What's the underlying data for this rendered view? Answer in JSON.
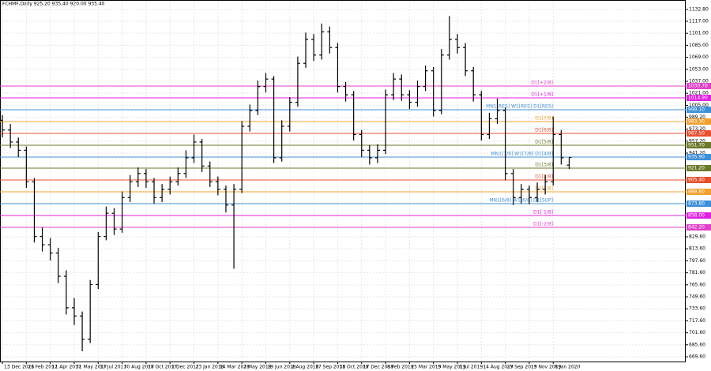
{
  "chart_data": {
    "type": "ohlc",
    "title": "FCHMF,Daily  925.20 935.40 920.00 935.40",
    "color": "#000000",
    "grid": true,
    "x": [
      0,
      1,
      2,
      3,
      4,
      5,
      6,
      7,
      8,
      9,
      10,
      11,
      12,
      13,
      14,
      15,
      16,
      17,
      18,
      19,
      20,
      21,
      22,
      23,
      24,
      25,
      26,
      27,
      28,
      29,
      30,
      31,
      32,
      33,
      34,
      35,
      36,
      37,
      38,
      39,
      40,
      41,
      42,
      43,
      44,
      45,
      46,
      47,
      48,
      49,
      50,
      51,
      52,
      53,
      54,
      55,
      56,
      57,
      58,
      59,
      60,
      61,
      62,
      63,
      64,
      65,
      66,
      67,
      68,
      69,
      70,
      71
    ],
    "open": [
      985,
      972,
      956,
      945,
      903,
      830,
      819,
      808,
      777,
      735,
      724,
      693,
      766,
      830,
      861,
      840,
      882,
      903,
      914,
      903,
      882,
      893,
      903,
      914,
      935,
      956,
      924,
      903,
      893,
      872,
      893,
      977,
      998,
      1030,
      1040,
      935,
      977,
      1009,
      1061,
      1093,
      1072,
      1103,
      1082,
      1030,
      1019,
      966,
      945,
      935,
      945,
      1019,
      1040,
      1019,
      1009,
      1030,
      1051,
      998,
      1072,
      1093,
      1082,
      1051,
      1019,
      966,
      987,
      998,
      914,
      882,
      893,
      882,
      893,
      903,
      966,
      925.2
    ],
    "high": [
      992,
      980,
      962,
      950,
      908,
      842,
      828,
      815,
      785,
      748,
      730,
      772,
      836,
      870,
      868,
      890,
      912,
      922,
      920,
      908,
      900,
      910,
      922,
      945,
      966,
      960,
      930,
      910,
      898,
      900,
      984,
      1006,
      1038,
      1048,
      1044,
      985,
      1016,
      1070,
      1102,
      1100,
      1114,
      1110,
      1088,
      1036,
      1024,
      972,
      952,
      953,
      1026,
      1048,
      1046,
      1025,
      1038,
      1058,
      1056,
      1080,
      1124,
      1100,
      1088,
      1056,
      1024,
      995,
      1014,
      1002,
      920,
      900,
      898,
      902,
      912,
      990,
      972,
      935.4
    ],
    "low": [
      962,
      948,
      936,
      895,
      822,
      810,
      798,
      768,
      726,
      712,
      677,
      688,
      760,
      825,
      832,
      835,
      876,
      896,
      895,
      874,
      876,
      886,
      898,
      908,
      928,
      916,
      896,
      885,
      862,
      787,
      888,
      970,
      992,
      1022,
      928,
      930,
      970,
      1003,
      1055,
      1064,
      1066,
      1074,
      1022,
      1010,
      958,
      936,
      926,
      928,
      940,
      1012,
      1011,
      1000,
      1003,
      1024,
      990,
      993,
      1066,
      1074,
      1044,
      1010,
      958,
      960,
      980,
      905,
      872,
      874,
      873,
      876,
      886,
      898,
      926,
      920
    ],
    "close": [
      972,
      956,
      945,
      903,
      830,
      819,
      808,
      777,
      735,
      724,
      693,
      766,
      830,
      861,
      840,
      882,
      903,
      914,
      903,
      882,
      893,
      903,
      914,
      935,
      956,
      924,
      903,
      893,
      872,
      893,
      977,
      998,
      1030,
      1040,
      935,
      977,
      1009,
      1061,
      1093,
      1072,
      1103,
      1082,
      1030,
      1019,
      966,
      945,
      935,
      945,
      1019,
      1040,
      1019,
      1009,
      1030,
      1051,
      998,
      1072,
      1093,
      1082,
      1051,
      1019,
      966,
      987,
      998,
      914,
      882,
      893,
      882,
      893,
      903,
      966,
      935,
      935.4
    ],
    "xlim": [
      -0.3,
      85.6
    ],
    "ylim": [
      663.3,
      1145.4
    ],
    "xticks": [
      {
        "value": 0,
        "label": "13 Dec 2016"
      },
      {
        "value": 3,
        "label": "21 Feb 2017"
      },
      {
        "value": 6,
        "label": "11 Apr 2017"
      },
      {
        "value": 9,
        "label": "31 May 2017"
      },
      {
        "value": 12,
        "label": "17 Jul 2017"
      },
      {
        "value": 15,
        "label": "30 Aug 2017"
      },
      {
        "value": 18,
        "label": "18 Oct 2017"
      },
      {
        "value": 21,
        "label": "1 Dec 2017"
      },
      {
        "value": 24,
        "label": "23 Jan 2018"
      },
      {
        "value": 27,
        "label": "14 Mar 2018"
      },
      {
        "value": 30,
        "label": "2 May 2018"
      },
      {
        "value": 33,
        "label": "19 Jun 2018"
      },
      {
        "value": 36,
        "label": "2 Aug 2018"
      },
      {
        "value": 39,
        "label": "17 Sep 2018"
      },
      {
        "value": 42,
        "label": "31 Oct 2018"
      },
      {
        "value": 45,
        "label": "17 Dec 2018"
      },
      {
        "value": 48,
        "label": "8 Feb 2019"
      },
      {
        "value": 51,
        "label": "25 Mar 2019"
      },
      {
        "value": 54,
        "label": "15 May 2019"
      },
      {
        "value": 57,
        "label": "1 Jul 2019"
      },
      {
        "value": 60,
        "label": "14 Aug 2019"
      },
      {
        "value": 63,
        "label": "27 Sep 2019"
      },
      {
        "value": 66,
        "label": "13 Nov 2019"
      },
      {
        "value": 69,
        "label": "8 Jan 2020"
      }
    ],
    "yticks": [
      {
        "value": 669.6,
        "label": "669.60"
      },
      {
        "value": 685.6,
        "label": "685.60"
      },
      {
        "value": 701.6,
        "label": "701.60"
      },
      {
        "value": 717.6,
        "label": "717.60"
      },
      {
        "value": 733.6,
        "label": "733.60"
      },
      {
        "value": 749.6,
        "label": "749.60"
      },
      {
        "value": 765.6,
        "label": "765.60"
      },
      {
        "value": 781.6,
        "label": "781.60"
      },
      {
        "value": 797.6,
        "label": "797.60"
      },
      {
        "value": 813.6,
        "label": "813.60"
      },
      {
        "value": 829.6,
        "label": "829.60"
      },
      {
        "value": 941.2,
        "label": "941.20"
      },
      {
        "value": 957.2,
        "label": "957.20"
      },
      {
        "value": 973.2,
        "label": "973.20"
      },
      {
        "value": 989.2,
        "label": "989.20"
      },
      {
        "value": 1005,
        "label": "1005.00"
      },
      {
        "value": 1021,
        "label": "1021.00"
      },
      {
        "value": 1037,
        "label": "1037.00"
      },
      {
        "value": 1053,
        "label": "1053.00"
      },
      {
        "value": 1069,
        "label": "1069.00"
      },
      {
        "value": 1085,
        "label": "1085.00"
      },
      {
        "value": 1101,
        "label": "1101.00"
      },
      {
        "value": 1117,
        "label": "1117.00"
      },
      {
        "value": 1132.8,
        "label": "1132.80"
      }
    ],
    "levels": [
      {
        "name": "D1[+2/8]",
        "value": 1030.7,
        "label": "1030.70",
        "color": "#e040c8"
      },
      {
        "name": "D1[+1/8]",
        "value": 1014.9,
        "label": "1014.90",
        "color": "#e020e0"
      },
      {
        "name": "MN1[RES] W1[RES] D1[RES]",
        "value": 999.1,
        "label": "999.10",
        "color": "#3d8fd8"
      },
      {
        "name": "D1[7/8]",
        "value": 983.3,
        "label": "983.30",
        "color": "#f0a030"
      },
      {
        "name": "D1[6/8]",
        "value": 967.5,
        "label": "967.50",
        "color": "#e85030"
      },
      {
        "name": "D1[5/8]",
        "value": 951.7,
        "label": "951.70",
        "color": "#6b7a2a"
      },
      {
        "name": "MN1[7/8] W1[7/8] D1[4/8]",
        "value": 935.9,
        "label": "935.90",
        "color": "#3d8fd8"
      },
      {
        "name": "D1[3/8]",
        "value": 921.2,
        "label": "921.20",
        "color": "#6b7a2a"
      },
      {
        "name": "D1[2/8]",
        "value": 905.4,
        "label": "905.40",
        "color": "#e85030"
      },
      {
        "name": "D1[1/8]",
        "value": 889.6,
        "label": "889.60",
        "color": "#f0a030"
      },
      {
        "name": "MN1[6/8] W1[6/8] D1[SUP]",
        "value": 873.8,
        "label": "873.80",
        "color": "#3d8fd8"
      },
      {
        "name": "D1[-1/8]",
        "value": 858.0,
        "label": "858.00",
        "color": "#e020e0"
      },
      {
        "name": "D1[-2/8]",
        "value": 842.2,
        "label": "842.20",
        "color": "#e040c8"
      }
    ]
  }
}
